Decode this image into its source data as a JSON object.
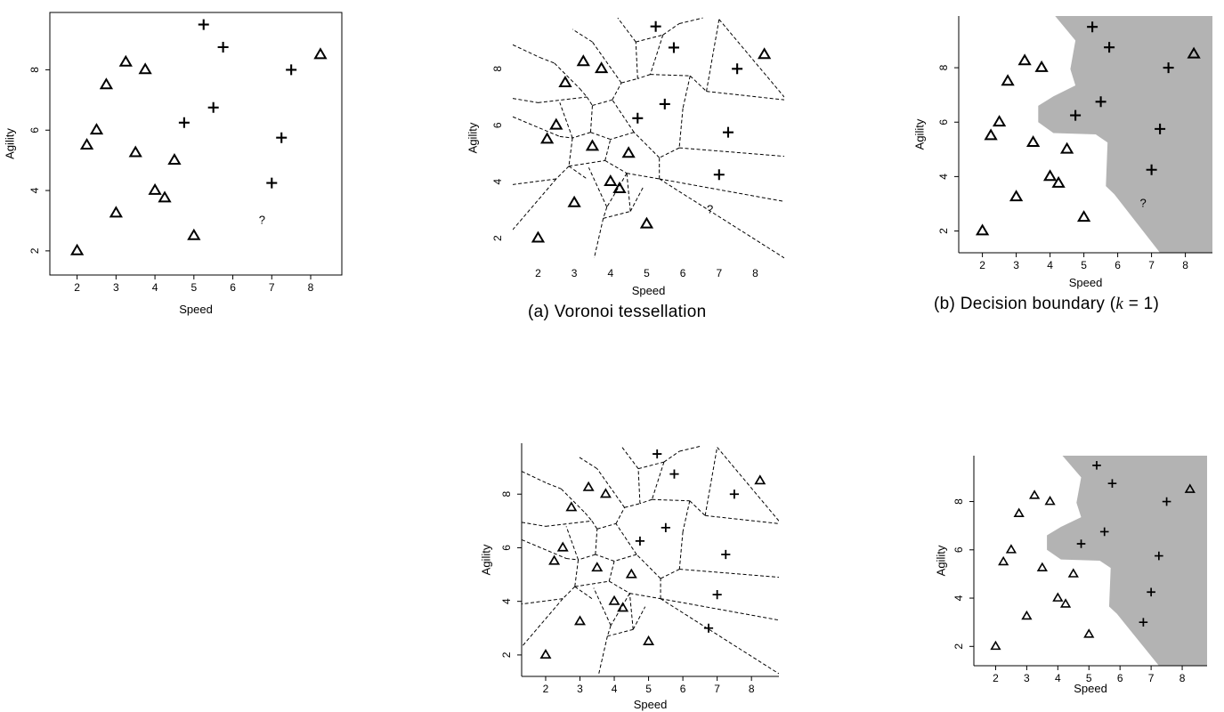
{
  "chart_data": [
    {
      "id": "p1",
      "type": "scatter",
      "title": "",
      "xlabel": "Speed",
      "ylabel": "Agility",
      "xticks": [
        2,
        3,
        4,
        5,
        6,
        7,
        8
      ],
      "yticks": [
        2,
        4,
        6,
        8
      ],
      "xlim": [
        1.3,
        8.8
      ],
      "ylim": [
        1.2,
        9.9
      ],
      "frame": "box",
      "series": [
        {
          "marker": "triangle",
          "points": [
            [
              2,
              2
            ],
            [
              2.25,
              5.5
            ],
            [
              2.5,
              6
            ],
            [
              2.75,
              7.5
            ],
            [
              3,
              3.25
            ],
            [
              3.25,
              8.25
            ],
            [
              3.5,
              5.25
            ],
            [
              3.75,
              8
            ],
            [
              4,
              4
            ],
            [
              4.25,
              3.75
            ],
            [
              4.5,
              5
            ],
            [
              5,
              2.5
            ],
            [
              8.25,
              8.5
            ]
          ]
        },
        {
          "marker": "plus",
          "points": [
            [
              4.75,
              6.25
            ],
            [
              5.25,
              9.5
            ],
            [
              5.5,
              6.75
            ],
            [
              5.75,
              8.75
            ],
            [
              7,
              4.25
            ],
            [
              7.25,
              5.75
            ],
            [
              7.5,
              8
            ]
          ]
        }
      ],
      "query": {
        "label": "?",
        "x": 6.75,
        "y": 3
      }
    },
    {
      "id": "p2",
      "type": "scatter",
      "title": "",
      "xlabel": "Speed",
      "ylabel": "Agility",
      "xticks": [
        2,
        3,
        4,
        5,
        6,
        7,
        8
      ],
      "yticks": [
        2,
        4,
        6,
        8
      ],
      "xlim": [
        1.3,
        8.8
      ],
      "ylim": [
        1.2,
        9.9
      ],
      "frame": "none",
      "voronoi": true,
      "series": [
        {
          "marker": "triangle",
          "points": [
            [
              2,
              2
            ],
            [
              2.25,
              5.5
            ],
            [
              2.5,
              6
            ],
            [
              2.75,
              7.5
            ],
            [
              3,
              3.25
            ],
            [
              3.25,
              8.25
            ],
            [
              3.5,
              5.25
            ],
            [
              3.75,
              8
            ],
            [
              4,
              4
            ],
            [
              4.25,
              3.75
            ],
            [
              4.5,
              5
            ],
            [
              5,
              2.5
            ],
            [
              8.25,
              8.5
            ]
          ]
        },
        {
          "marker": "plus",
          "points": [
            [
              4.75,
              6.25
            ],
            [
              5.25,
              9.5
            ],
            [
              5.5,
              6.75
            ],
            [
              5.75,
              8.75
            ],
            [
              7,
              4.25
            ],
            [
              7.25,
              5.75
            ],
            [
              7.5,
              8
            ]
          ]
        }
      ],
      "query": {
        "label": "?",
        "x": 6.75,
        "y": 3
      }
    },
    {
      "id": "p3",
      "type": "scatter",
      "title": "",
      "xlabel": "Speed",
      "ylabel": "Agility",
      "xticks": [
        2,
        3,
        4,
        5,
        6,
        7,
        8
      ],
      "yticks": [
        2,
        4,
        6,
        8
      ],
      "xlim": [
        1.3,
        8.8
      ],
      "ylim": [
        1.2,
        9.9
      ],
      "frame": "L",
      "decision_region": true,
      "series": [
        {
          "marker": "triangle",
          "points": [
            [
              2,
              2
            ],
            [
              2.25,
              5.5
            ],
            [
              2.5,
              6
            ],
            [
              2.75,
              7.5
            ],
            [
              3,
              3.25
            ],
            [
              3.25,
              8.25
            ],
            [
              3.5,
              5.25
            ],
            [
              3.75,
              8
            ],
            [
              4,
              4
            ],
            [
              4.25,
              3.75
            ],
            [
              4.5,
              5
            ],
            [
              5,
              2.5
            ],
            [
              8.25,
              8.5
            ]
          ]
        },
        {
          "marker": "plus",
          "points": [
            [
              4.75,
              6.25
            ],
            [
              5.25,
              9.5
            ],
            [
              5.5,
              6.75
            ],
            [
              5.75,
              8.75
            ],
            [
              7,
              4.25
            ],
            [
              7.25,
              5.75
            ],
            [
              7.5,
              8
            ]
          ]
        }
      ],
      "query": {
        "label": "?",
        "x": 6.75,
        "y": 3
      }
    },
    {
      "id": "p4",
      "type": "scatter",
      "title": "",
      "xlabel": "Speed",
      "ylabel": "Agility",
      "xticks": [
        2,
        3,
        4,
        5,
        6,
        7,
        8
      ],
      "yticks": [
        2,
        4,
        6,
        8
      ],
      "xlim": [
        1.3,
        8.8
      ],
      "ylim": [
        1.2,
        9.9
      ],
      "frame": "L",
      "voronoi": true,
      "series": [
        {
          "marker": "triangle",
          "points": [
            [
              2,
              2
            ],
            [
              2.25,
              5.5
            ],
            [
              2.5,
              6
            ],
            [
              2.75,
              7.5
            ],
            [
              3,
              3.25
            ],
            [
              3.25,
              8.25
            ],
            [
              3.5,
              5.25
            ],
            [
              3.75,
              8
            ],
            [
              4,
              4
            ],
            [
              4.25,
              3.75
            ],
            [
              4.5,
              5
            ],
            [
              5,
              2.5
            ],
            [
              8.25,
              8.5
            ]
          ]
        },
        {
          "marker": "plus",
          "points": [
            [
              4.75,
              6.25
            ],
            [
              5.25,
              9.5
            ],
            [
              5.5,
              6.75
            ],
            [
              5.75,
              8.75
            ],
            [
              7,
              4.25
            ],
            [
              7.25,
              5.75
            ],
            [
              7.5,
              8
            ],
            [
              6.75,
              3
            ]
          ]
        }
      ]
    },
    {
      "id": "p5",
      "type": "scatter",
      "title": "",
      "xlabel": "Speed",
      "ylabel": "Agility",
      "xticks": [
        2,
        3,
        4,
        5,
        6,
        7,
        8
      ],
      "yticks": [
        2,
        4,
        6,
        8
      ],
      "xlim": [
        1.3,
        8.8
      ],
      "ylim": [
        1.2,
        9.9
      ],
      "frame": "L",
      "decision_region": true,
      "series": [
        {
          "marker": "triangle",
          "points": [
            [
              2,
              2
            ],
            [
              2.25,
              5.5
            ],
            [
              2.5,
              6
            ],
            [
              2.75,
              7.5
            ],
            [
              3,
              3.25
            ],
            [
              3.25,
              8.25
            ],
            [
              3.5,
              5.25
            ],
            [
              3.75,
              8
            ],
            [
              4,
              4
            ],
            [
              4.25,
              3.75
            ],
            [
              4.5,
              5
            ],
            [
              5,
              2.5
            ],
            [
              8.25,
              8.5
            ]
          ]
        },
        {
          "marker": "plus",
          "points": [
            [
              4.75,
              6.25
            ],
            [
              5.25,
              9.5
            ],
            [
              5.5,
              6.75
            ],
            [
              5.75,
              8.75
            ],
            [
              7,
              4.25
            ],
            [
              7.25,
              5.75
            ],
            [
              7.5,
              8
            ],
            [
              6.75,
              3
            ]
          ]
        }
      ]
    }
  ],
  "captions": {
    "a_prefix": "(a) ",
    "a_text": "Voronoi tessellation",
    "b_prefix": "(b) ",
    "b_text": "Decision boundary (",
    "b_var": "k",
    "b_suffix": " =  1)"
  },
  "colors": {
    "region_fill": "#b3b3b3",
    "ink": "#000000"
  }
}
